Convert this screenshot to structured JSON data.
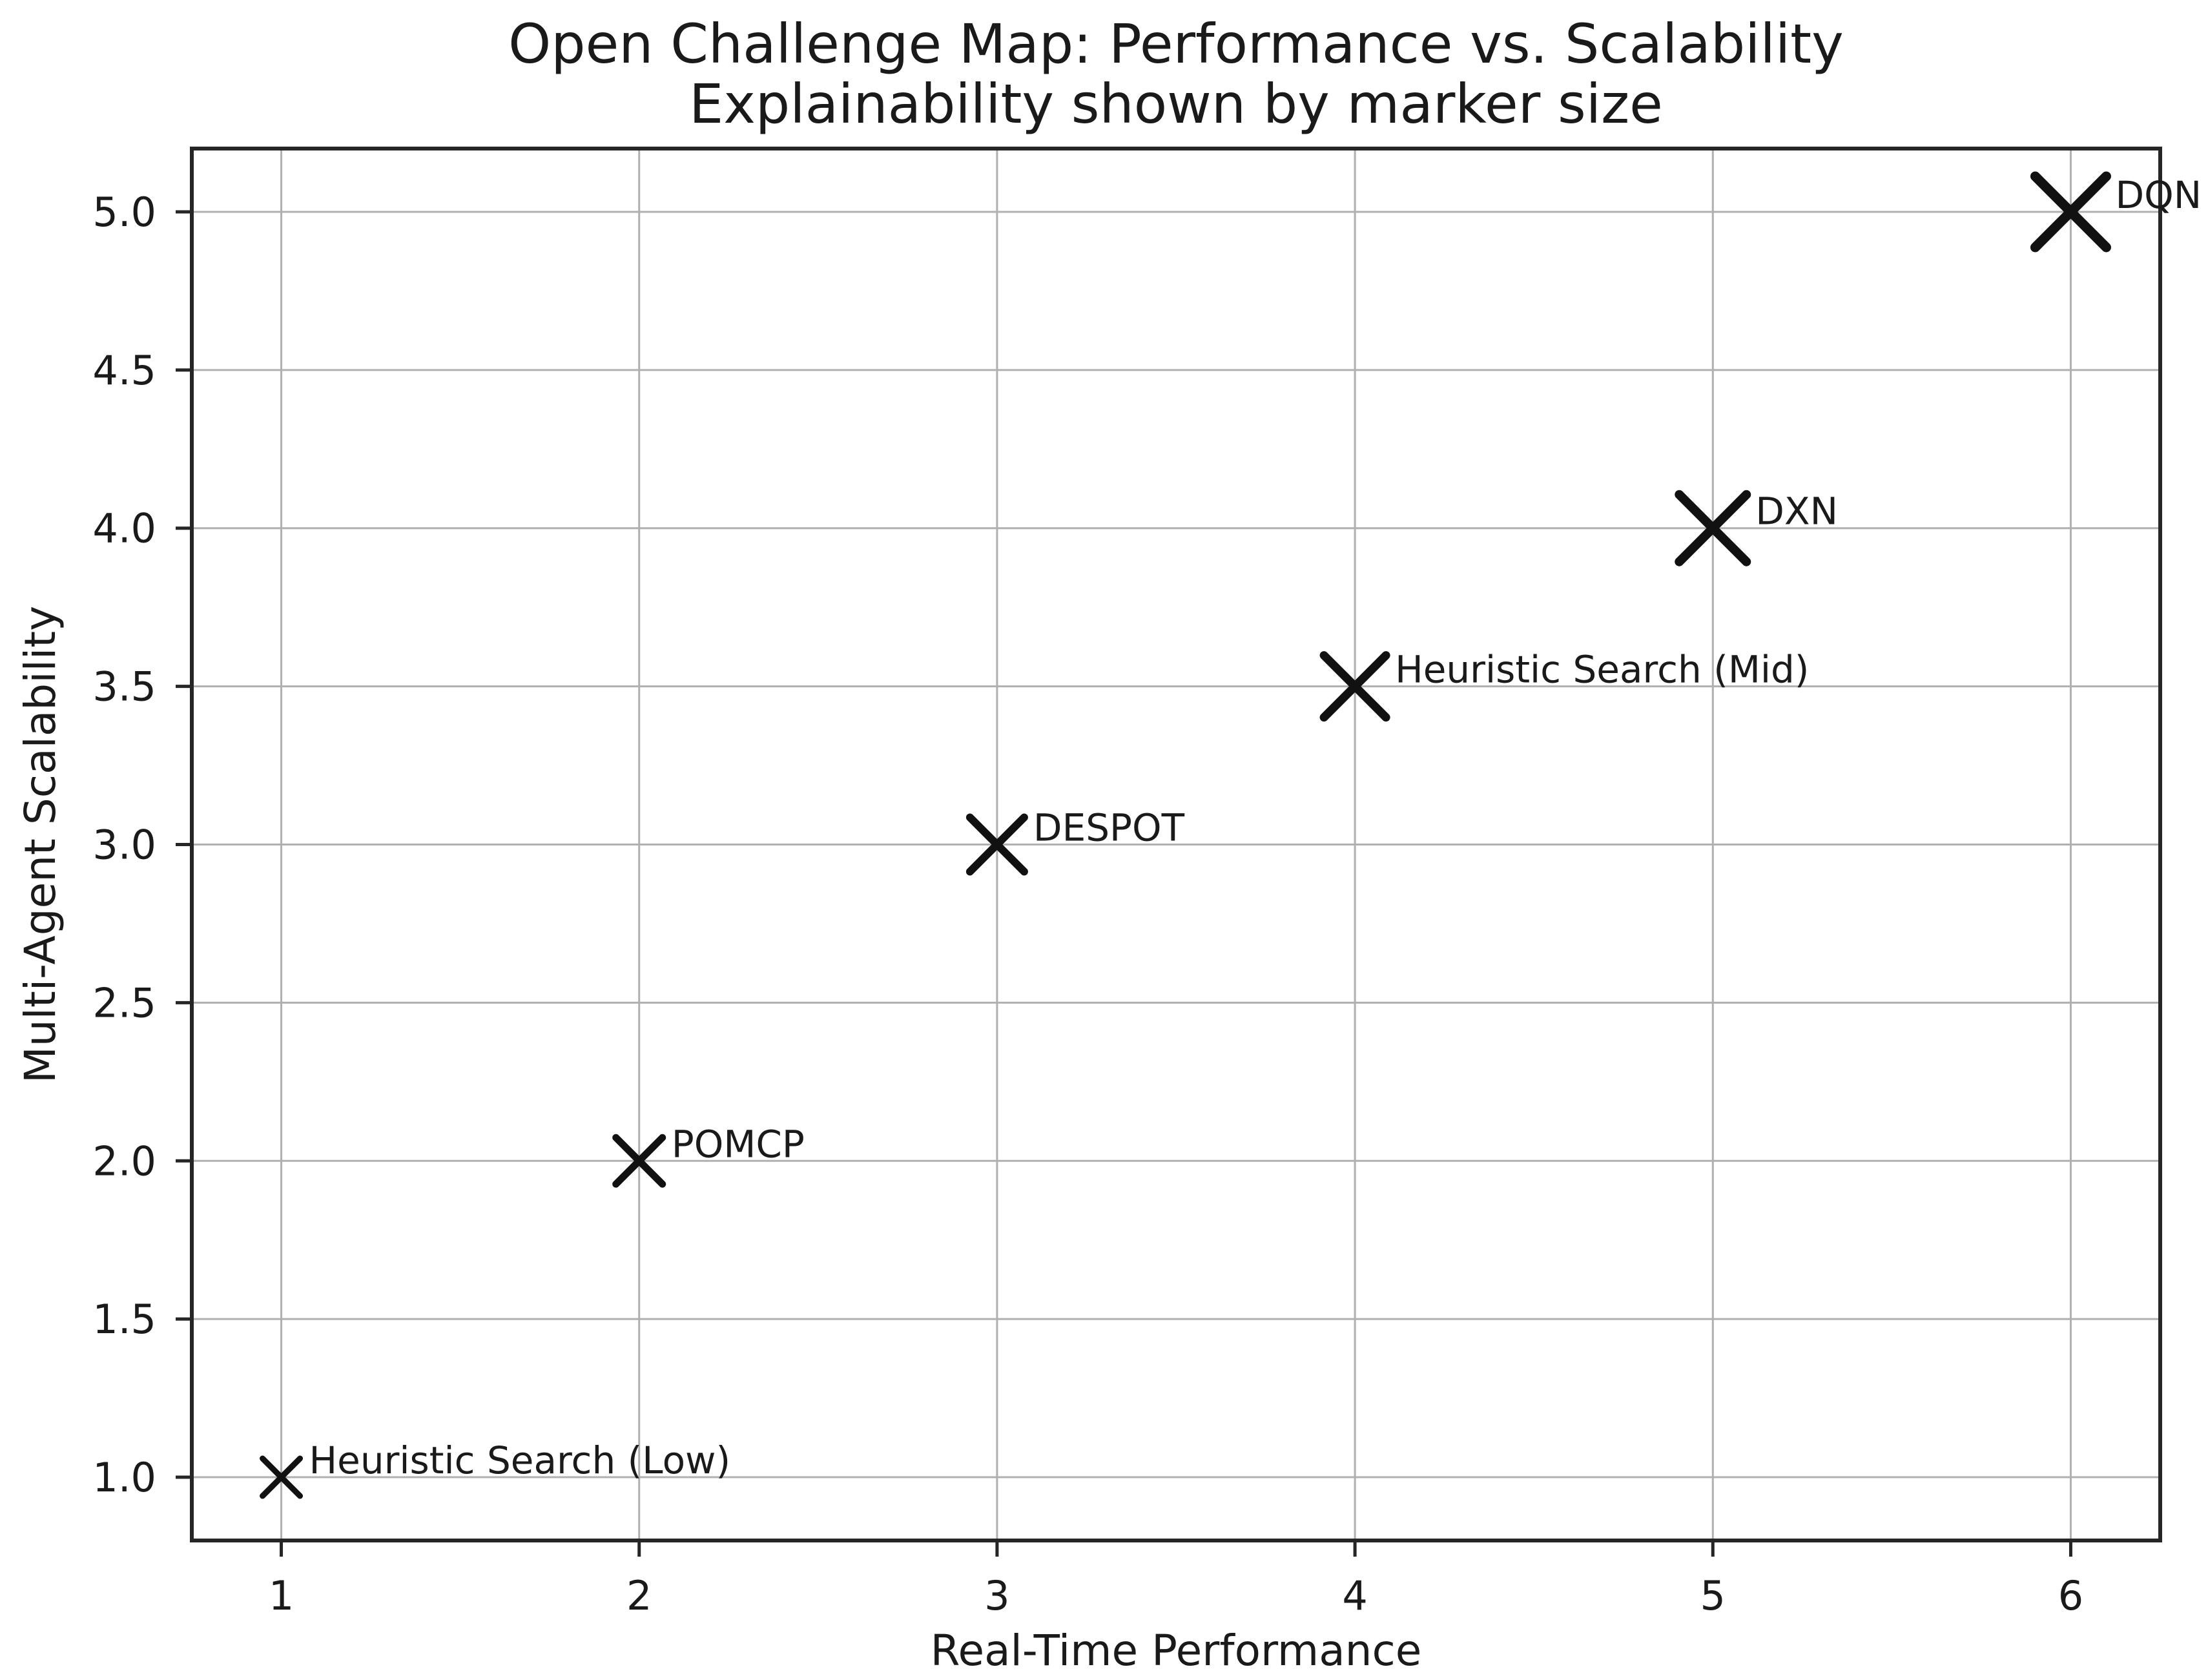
{
  "chart_data": {
    "type": "scatter",
    "title": "Open Challenge Map: Performance vs. Scalability",
    "subtitle": "Explainability shown by marker size",
    "xlabel": "Real-Time Performance",
    "ylabel": "Multi-Agent Scalability",
    "xlim": [
      0.75,
      6.25
    ],
    "ylim": [
      0.8,
      5.2
    ],
    "xticks": [
      1,
      2,
      3,
      4,
      5,
      6
    ],
    "xtick_labels": [
      "1",
      "2",
      "3",
      "4",
      "5",
      "6"
    ],
    "yticks": [
      1.0,
      1.5,
      2.0,
      2.5,
      3.0,
      3.5,
      4.0,
      4.5,
      5.0
    ],
    "ytick_labels": [
      "1.0",
      "1.5",
      "2.0",
      "2.5",
      "3.0",
      "3.5",
      "4.0",
      "4.5",
      "5.0"
    ],
    "grid": true,
    "legend": "none",
    "marker_style": "x",
    "size_encodes": "Explainability",
    "points": [
      {
        "label": "Heuristic Search (Low)",
        "x": 1,
        "y": 1.0,
        "marker_size": 58,
        "stroke": 9
      },
      {
        "label": "POMCP",
        "x": 2,
        "y": 2.0,
        "marker_size": 72,
        "stroke": 11
      },
      {
        "label": "DESPOT",
        "x": 3,
        "y": 3.0,
        "marker_size": 84,
        "stroke": 12
      },
      {
        "label": "Heuristic Search (Mid)",
        "x": 4,
        "y": 3.5,
        "marker_size": 96,
        "stroke": 13
      },
      {
        "label": "DXN",
        "x": 5,
        "y": 4.0,
        "marker_size": 104,
        "stroke": 14
      },
      {
        "label": "DQN",
        "x": 6,
        "y": 5.0,
        "marker_size": 110,
        "stroke": 15
      }
    ],
    "colors": {
      "marker": "#111111",
      "grid": "#b0b0b0",
      "spine": "#262626",
      "text": "#1a1a1a",
      "background": "#ffffff"
    }
  }
}
